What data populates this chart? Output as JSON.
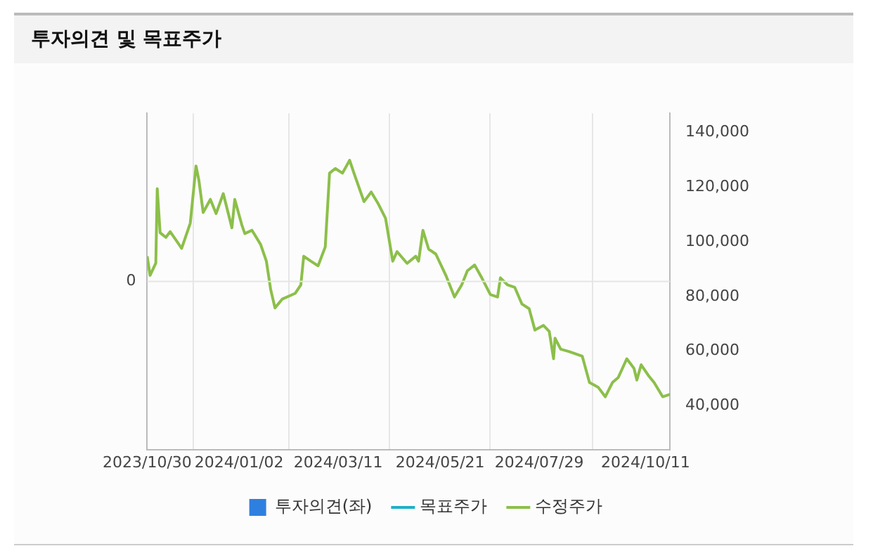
{
  "chart_data": {
    "type": "line",
    "title": "투자의견 및 목표주가",
    "xlim": [
      "2023-10-30",
      "2024-10-28"
    ],
    "xticks": [
      {
        "value": "2023-10-30",
        "label": "2023/10/30"
      },
      {
        "value": "2024-01-02",
        "label": "2024/01/02"
      },
      {
        "value": "2024-03-11",
        "label": "2024/03/11"
      },
      {
        "value": "2024-05-21",
        "label": "2024/05/21"
      },
      {
        "value": "2024-07-29",
        "label": "2024/07/29"
      },
      {
        "value": "2024-10-11",
        "label": "2024/10/11"
      }
    ],
    "annotations": [
      "0"
    ],
    "y2lim": [
      24000,
      147000
    ],
    "y2ticks": [
      {
        "value": 40000,
        "label": "40,000"
      },
      {
        "value": 60000,
        "label": "60,000"
      },
      {
        "value": 80000,
        "label": "80,000"
      },
      {
        "value": 100000,
        "label": "100,000"
      },
      {
        "value": 120000,
        "label": "120,000"
      },
      {
        "value": 140000,
        "label": "140,000"
      }
    ],
    "grid": true,
    "legend": "bottom",
    "marker": "none",
    "series": [
      {
        "name": "투자의견(좌)",
        "type": "bar",
        "axis": "y",
        "color": "#2f7fe0"
      },
      {
        "name": "목표주가",
        "axis": "y2",
        "color": "#1fb0c8"
      },
      {
        "name": "수정주가",
        "axis": "y2",
        "color": "#8cbf4a",
        "x": [
          "2023-10-30",
          "2023-11-01",
          "2023-11-05",
          "2023-11-06",
          "2023-11-08",
          "2023-11-12",
          "2023-11-15",
          "2023-11-23",
          "2023-11-29",
          "2023-12-03",
          "2023-12-05",
          "2023-12-08",
          "2023-12-13",
          "2023-12-17",
          "2023-12-22",
          "2023-12-28",
          "2023-12-30",
          "2024-01-04",
          "2024-01-06",
          "2024-01-11",
          "2024-01-17",
          "2024-01-21",
          "2024-01-24",
          "2024-01-27",
          "2024-02-01",
          "2024-02-10",
          "2024-02-14",
          "2024-02-16",
          "2024-02-21",
          "2024-02-26",
          "2024-03-02",
          "2024-03-05",
          "2024-03-09",
          "2024-03-14",
          "2024-03-19",
          "2024-03-22",
          "2024-03-29",
          "2024-04-03",
          "2024-04-08",
          "2024-04-13",
          "2024-04-18",
          "2024-04-21",
          "2024-04-28",
          "2024-05-04",
          "2024-05-06",
          "2024-05-09",
          "2024-05-13",
          "2024-05-18",
          "2024-05-25",
          "2024-05-31",
          "2024-06-05",
          "2024-06-09",
          "2024-06-14",
          "2024-06-19",
          "2024-06-25",
          "2024-06-30",
          "2024-07-02",
          "2024-07-07",
          "2024-07-12",
          "2024-07-17",
          "2024-07-22",
          "2024-07-26",
          "2024-08-01",
          "2024-08-05",
          "2024-08-08",
          "2024-08-09",
          "2024-08-13",
          "2024-08-19",
          "2024-08-28",
          "2024-09-02",
          "2024-09-08",
          "2024-09-13",
          "2024-09-18",
          "2024-09-22",
          "2024-09-28",
          "2024-10-03",
          "2024-10-05",
          "2024-10-08",
          "2024-10-13",
          "2024-10-17",
          "2024-10-23",
          "2024-10-28"
        ],
        "values": [
          94700,
          87700,
          92200,
          119400,
          103300,
          101600,
          103700,
          97600,
          106800,
          127700,
          122500,
          110700,
          115500,
          110300,
          117600,
          105100,
          115500,
          106000,
          103000,
          104200,
          99000,
          92900,
          82500,
          75800,
          79000,
          81100,
          84200,
          94700,
          92900,
          91200,
          98100,
          125100,
          126800,
          125100,
          129800,
          125100,
          114700,
          118200,
          113800,
          108600,
          92900,
          96400,
          92100,
          94700,
          92900,
          104200,
          97300,
          95500,
          87700,
          79800,
          84200,
          89400,
          91500,
          86800,
          80700,
          79800,
          86800,
          84200,
          83300,
          77200,
          75500,
          67700,
          69400,
          67200,
          57200,
          64700,
          60700,
          59800,
          58100,
          48500,
          46800,
          43300,
          48500,
          50300,
          57200,
          53700,
          49400,
          55000,
          51100,
          48500,
          43300,
          44200
        ]
      }
    ]
  }
}
